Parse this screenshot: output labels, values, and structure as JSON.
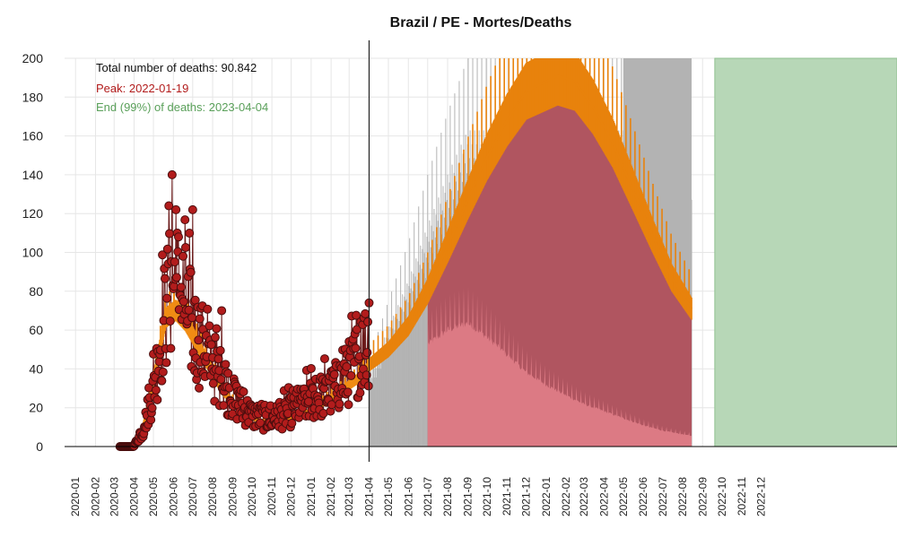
{
  "chart_data": {
    "type": "line",
    "title": "Brazil / PE - Mortes/Deaths",
    "ylim": [
      0,
      200
    ],
    "y_ticks": [
      "0",
      "20",
      "40",
      "60",
      "80",
      "100",
      "120",
      "140",
      "160",
      "180",
      "200"
    ],
    "x_range": [
      "2019-12-15",
      "2023-06-30"
    ],
    "x_ticks": [
      "2020-01",
      "2020-02",
      "2020-03",
      "2020-04",
      "2020-05",
      "2020-06",
      "2020-07",
      "2020-08",
      "2020-09",
      "2020-10",
      "2020-11",
      "2020-12",
      "2021-01",
      "2021-02",
      "2021-03",
      "2021-04",
      "2021-05",
      "2021-06",
      "2021-07",
      "2021-08",
      "2021-09",
      "2021-10",
      "2021-11",
      "2021-12",
      "2022-01",
      "2022-02",
      "2022-03",
      "2022-04",
      "2022-05",
      "2022-06",
      "2022-07",
      "2022-08",
      "2022-09",
      "2022-10",
      "2022-11",
      "2022-12"
    ],
    "grid": true,
    "annotations": {
      "total": "Total number of deaths: 90.842",
      "peak": "Peak: 2022-01-19",
      "end": "End (99%) of deaths: 2023-04-04"
    },
    "colors": {
      "observed_points": "#b21c1c",
      "observed_line": "#6b1a1a",
      "fit_line": "#f08c14",
      "projection_bars": "#e8820c",
      "upper_band": "#b3b3b3",
      "median_area": "#b05560",
      "lower_area": "#dc7a84",
      "end_band": "#b7d7b7",
      "peak_text": "#b21c1c",
      "end_text": "#5aa05a"
    },
    "current_date": "2021-04-01",
    "observed": {
      "date_range": [
        "2020-03-10",
        "2021-04-01"
      ],
      "monthly_avg": [
        {
          "date": "2020-03-10",
          "value": 0
        },
        {
          "date": "2020-03-31",
          "value": 0
        },
        {
          "date": "2020-04-15",
          "value": 8
        },
        {
          "date": "2020-05-01",
          "value": 30
        },
        {
          "date": "2020-05-20",
          "value": 70
        },
        {
          "date": "2020-06-01",
          "value": 85
        },
        {
          "date": "2020-06-15",
          "value": 78
        },
        {
          "date": "2020-07-01",
          "value": 60
        },
        {
          "date": "2020-08-01",
          "value": 42
        },
        {
          "date": "2020-09-01",
          "value": 25
        },
        {
          "date": "2020-10-01",
          "value": 16
        },
        {
          "date": "2020-11-01",
          "value": 14
        },
        {
          "date": "2020-12-01",
          "value": 18
        },
        {
          "date": "2021-01-01",
          "value": 24
        },
        {
          "date": "2021-02-01",
          "value": 28
        },
        {
          "date": "2021-03-01",
          "value": 38
        },
        {
          "date": "2021-04-01",
          "value": 55
        }
      ],
      "notable_points": [
        {
          "date": "2020-05-30",
          "value": 140
        },
        {
          "date": "2020-05-25",
          "value": 124
        },
        {
          "date": "2020-06-05",
          "value": 122
        },
        {
          "date": "2020-07-01",
          "value": 122
        },
        {
          "date": "2020-08-15",
          "value": 70
        },
        {
          "date": "2021-04-01",
          "value": 74
        }
      ]
    },
    "fit_curve": [
      {
        "date": "2020-03-25",
        "value": 0
      },
      {
        "date": "2020-04-15",
        "value": 10
      },
      {
        "date": "2020-05-01",
        "value": 35
      },
      {
        "date": "2020-05-20",
        "value": 68
      },
      {
        "date": "2020-06-05",
        "value": 72
      },
      {
        "date": "2020-06-20",
        "value": 66
      },
      {
        "date": "2020-07-15",
        "value": 50
      },
      {
        "date": "2020-08-15",
        "value": 30
      },
      {
        "date": "2020-09-15",
        "value": 18
      },
      {
        "date": "2020-10-15",
        "value": 13
      },
      {
        "date": "2020-11-15",
        "value": 13
      },
      {
        "date": "2020-12-15",
        "value": 16
      },
      {
        "date": "2021-01-15",
        "value": 22
      },
      {
        "date": "2021-02-15",
        "value": 29
      },
      {
        "date": "2021-03-15",
        "value": 36
      },
      {
        "date": "2021-04-01",
        "value": 42
      }
    ],
    "projection_median": [
      {
        "date": "2021-04-01",
        "value": 42
      },
      {
        "date": "2021-05-01",
        "value": 50
      },
      {
        "date": "2021-06-01",
        "value": 62
      },
      {
        "date": "2021-07-01",
        "value": 80
      },
      {
        "date": "2021-08-01",
        "value": 103
      },
      {
        "date": "2021-09-01",
        "value": 127
      },
      {
        "date": "2021-10-01",
        "value": 149
      },
      {
        "date": "2021-11-01",
        "value": 168
      },
      {
        "date": "2021-12-01",
        "value": 183
      },
      {
        "date": "2022-01-19",
        "value": 191
      },
      {
        "date": "2022-02-15",
        "value": 188
      },
      {
        "date": "2022-03-15",
        "value": 175
      },
      {
        "date": "2022-04-15",
        "value": 156
      },
      {
        "date": "2022-05-15",
        "value": 133
      },
      {
        "date": "2022-06-15",
        "value": 109
      },
      {
        "date": "2022-07-15",
        "value": 87
      },
      {
        "date": "2022-08-15",
        "value": 71
      }
    ],
    "projection_lower": [
      {
        "date": "2021-07-01",
        "value": 58
      },
      {
        "date": "2021-08-01",
        "value": 66
      },
      {
        "date": "2021-09-01",
        "value": 70
      },
      {
        "date": "2021-10-01",
        "value": 62
      },
      {
        "date": "2021-11-01",
        "value": 52
      },
      {
        "date": "2021-12-01",
        "value": 42
      },
      {
        "date": "2022-01-01",
        "value": 35
      },
      {
        "date": "2022-02-01",
        "value": 29
      },
      {
        "date": "2022-03-01",
        "value": 24
      },
      {
        "date": "2022-04-01",
        "value": 20
      },
      {
        "date": "2022-05-01",
        "value": 16
      },
      {
        "date": "2022-06-01",
        "value": 12
      },
      {
        "date": "2022-07-01",
        "value": 9
      },
      {
        "date": "2022-08-15",
        "value": 6
      }
    ],
    "projection_upper": [
      {
        "date": "2021-04-01",
        "value": 45
      },
      {
        "date": "2021-05-01",
        "value": 75
      },
      {
        "date": "2021-06-01",
        "value": 105
      },
      {
        "date": "2021-07-01",
        "value": 140
      },
      {
        "date": "2021-08-01",
        "value": 172
      },
      {
        "date": "2021-09-01",
        "value": 200
      },
      {
        "date": "2022-08-15",
        "value": 200
      }
    ],
    "projection_end": "2022-08-15",
    "end_band_range": [
      "2022-09-20",
      "2023-06-30"
    ],
    "end_band_value": 200
  }
}
